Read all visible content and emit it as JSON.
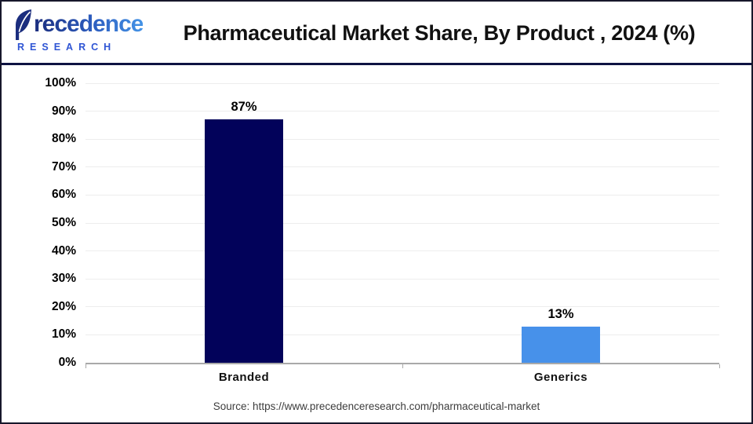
{
  "logo": {
    "brand": "Precedence",
    "sub": "RESEARCH"
  },
  "header": {
    "title": "Pharmaceutical Market Share, By Product , 2024 (%)"
  },
  "chart_data": {
    "type": "bar",
    "title": "Pharmaceutical Market Share, By Product , 2024 (%)",
    "categories": [
      "Branded",
      "Generics"
    ],
    "values": [
      87,
      13
    ],
    "value_labels": [
      "87%",
      "13%"
    ],
    "bar_colors": [
      "#02025a",
      "#4791ea"
    ],
    "y_ticks": [
      "0%",
      "10%",
      "20%",
      "30%",
      "40%",
      "50%",
      "60%",
      "70%",
      "80%",
      "90%",
      "100%"
    ],
    "ylim": [
      0,
      100
    ],
    "xlabel": "",
    "ylabel": "",
    "grid": true,
    "legend": "none"
  },
  "footer": {
    "source": "Source: https://www.precedenceresearch.com/pharmaceutical-market"
  },
  "colors": {
    "header_rule": "#0e1342",
    "frame_border": "#17172b",
    "gridline": "#ededed",
    "axis_line": "#a9a9a9",
    "branded_bar": "#02025a",
    "generics_bar": "#4791ea",
    "logo_navy": "#1b2d7e",
    "logo_blue": "#4493e6",
    "research_blue": "#2f55d4"
  }
}
